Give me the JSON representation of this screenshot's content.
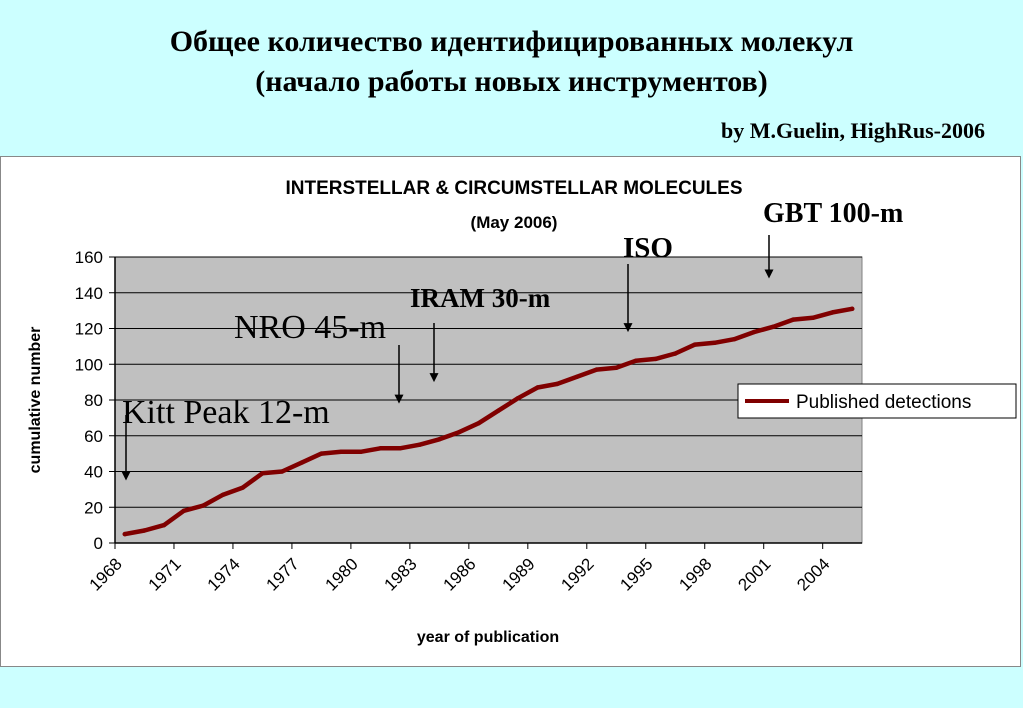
{
  "slide": {
    "title_line1": "Общее количество идентифицированных молекул",
    "title_line2": "(начало работы новых инструментов)",
    "credit": "by M.Guelin, HighRus-2006"
  },
  "colors": {
    "slide_background": "#ccffff",
    "plot_background": "#c0c0c0",
    "series_line": "#800000"
  },
  "chart_data": {
    "type": "line",
    "title": "INTERSTELLAR & CIRCUMSTELLAR MOLECULES",
    "subtitle": "(May 2006)",
    "xlabel": "year of publication",
    "ylabel": "cumulative number",
    "xlim": [
      1968,
      2006
    ],
    "ylim": [
      0,
      160
    ],
    "y_ticks": [
      0,
      20,
      40,
      60,
      80,
      100,
      120,
      140,
      160
    ],
    "x_tick_labels": [
      "1968",
      "1971",
      "1974",
      "1977",
      "1980",
      "1983",
      "1986",
      "1989",
      "1992",
      "1995",
      "1998",
      "2001",
      "2004"
    ],
    "grid": "horizontal",
    "legend": "right",
    "series": [
      {
        "name": "Published detections",
        "x": [
          1968,
          1969,
          1970,
          1971,
          1972,
          1973,
          1974,
          1975,
          1976,
          1977,
          1978,
          1979,
          1980,
          1981,
          1982,
          1983,
          1984,
          1985,
          1986,
          1987,
          1988,
          1989,
          1990,
          1991,
          1992,
          1993,
          1994,
          1995,
          1996,
          1997,
          1998,
          1999,
          2000,
          2001,
          2002,
          2003,
          2004,
          2005
        ],
        "values": [
          5,
          7,
          10,
          18,
          21,
          27,
          31,
          39,
          40,
          45,
          50,
          51,
          51,
          53,
          53,
          55,
          58,
          62,
          67,
          74,
          81,
          87,
          89,
          93,
          97,
          98,
          102,
          103,
          106,
          111,
          112,
          114,
          118,
          121,
          125,
          126,
          129,
          131
        ]
      }
    ],
    "annotations": [
      {
        "label": "Kitt Peak 12-m",
        "year": 1968,
        "value": 35
      },
      {
        "label": "NRO 45-m",
        "year": 1982,
        "value": 78
      },
      {
        "label": "IRAM 30-m",
        "year": 1985,
        "value": 90
      },
      {
        "label": "ISO",
        "year": 1995,
        "value": 118
      },
      {
        "label": "GBT 100-m",
        "year": 2002,
        "value": 148
      }
    ]
  }
}
